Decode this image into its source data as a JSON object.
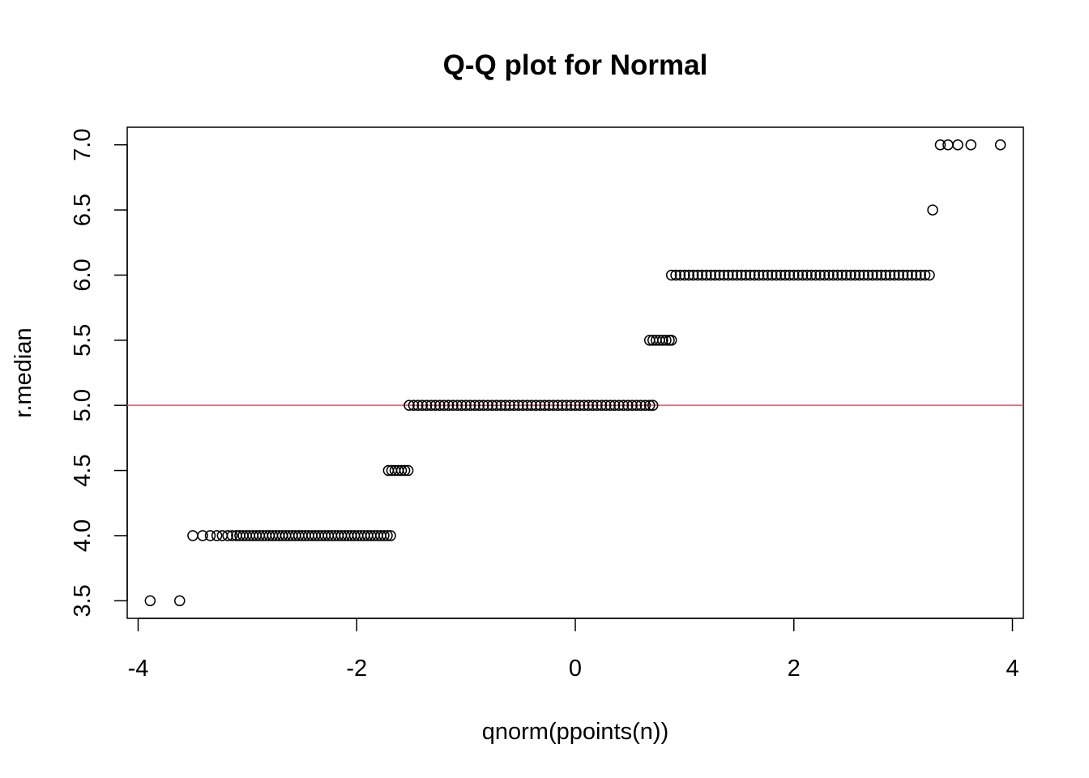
{
  "chart_data": {
    "type": "scatter",
    "title": "Q-Q plot for Normal",
    "xlabel": "qnorm(ppoints(n))",
    "ylabel": "r.median",
    "xlim": [
      -4.1,
      4.1
    ],
    "ylim": [
      3.365,
      7.135
    ],
    "x_ticks": [
      -4,
      -2,
      0,
      2,
      4
    ],
    "y_ticks": [
      3.5,
      4.0,
      4.5,
      5.0,
      5.5,
      6.0,
      6.5,
      7.0
    ],
    "reference_line": {
      "y": 5.0,
      "color": "#df536b"
    },
    "point_color": "#000000",
    "point_style": "open-circle",
    "points": [
      {
        "x": -3.89,
        "y": 3.5
      },
      {
        "x": -3.62,
        "y": 3.5
      },
      {
        "x": -3.5,
        "y": 4.0
      },
      {
        "x": -3.41,
        "y": 4.0
      },
      {
        "x": -3.34,
        "y": 4.0
      },
      {
        "x": -3.28,
        "y": 4.0
      },
      {
        "x": -3.23,
        "y": 4.0
      },
      {
        "x": -3.18,
        "y": 4.0
      },
      {
        "x": -3.14,
        "y": 4.0
      },
      {
        "x": -3.1,
        "y": 4.0
      },
      {
        "x": -3.07,
        "y": 4.0
      },
      {
        "x": -3.04,
        "y": 4.0
      },
      {
        "x": -3.01,
        "y": 4.0
      },
      {
        "x": -2.98,
        "y": 4.0
      },
      {
        "x": -2.95,
        "y": 4.0
      },
      {
        "x": -2.92,
        "y": 4.0
      },
      {
        "x": -2.89,
        "y": 4.0
      },
      {
        "x": -2.86,
        "y": 4.0
      },
      {
        "x": -2.83,
        "y": 4.0
      },
      {
        "x": -2.8,
        "y": 4.0
      },
      {
        "x": -2.77,
        "y": 4.0
      },
      {
        "x": -2.74,
        "y": 4.0
      },
      {
        "x": -2.71,
        "y": 4.0
      },
      {
        "x": -2.68,
        "y": 4.0
      },
      {
        "x": -2.65,
        "y": 4.0
      },
      {
        "x": -2.62,
        "y": 4.0
      },
      {
        "x": -2.59,
        "y": 4.0
      },
      {
        "x": -2.56,
        "y": 4.0
      },
      {
        "x": -2.53,
        "y": 4.0
      },
      {
        "x": -2.5,
        "y": 4.0
      },
      {
        "x": -2.47,
        "y": 4.0
      },
      {
        "x": -2.44,
        "y": 4.0
      },
      {
        "x": -2.41,
        "y": 4.0
      },
      {
        "x": -2.38,
        "y": 4.0
      },
      {
        "x": -2.35,
        "y": 4.0
      },
      {
        "x": -2.32,
        "y": 4.0
      },
      {
        "x": -2.29,
        "y": 4.0
      },
      {
        "x": -2.26,
        "y": 4.0
      },
      {
        "x": -2.23,
        "y": 4.0
      },
      {
        "x": -2.2,
        "y": 4.0
      },
      {
        "x": -2.17,
        "y": 4.0
      },
      {
        "x": -2.14,
        "y": 4.0
      },
      {
        "x": -2.11,
        "y": 4.0
      },
      {
        "x": -2.08,
        "y": 4.0
      },
      {
        "x": -2.05,
        "y": 4.0
      },
      {
        "x": -2.02,
        "y": 4.0
      },
      {
        "x": -1.99,
        "y": 4.0
      },
      {
        "x": -1.96,
        "y": 4.0
      },
      {
        "x": -1.93,
        "y": 4.0
      },
      {
        "x": -1.9,
        "y": 4.0
      },
      {
        "x": -1.87,
        "y": 4.0
      },
      {
        "x": -1.84,
        "y": 4.0
      },
      {
        "x": -1.81,
        "y": 4.0
      },
      {
        "x": -1.78,
        "y": 4.0
      },
      {
        "x": -1.75,
        "y": 4.0
      },
      {
        "x": -1.72,
        "y": 4.0
      },
      {
        "x": -1.69,
        "y": 4.0
      },
      {
        "x": -1.71,
        "y": 4.5
      },
      {
        "x": -1.68,
        "y": 4.5
      },
      {
        "x": -1.65,
        "y": 4.5
      },
      {
        "x": -1.62,
        "y": 4.5
      },
      {
        "x": -1.59,
        "y": 4.5
      },
      {
        "x": -1.56,
        "y": 4.5
      },
      {
        "x": -1.53,
        "y": 4.5
      },
      {
        "x": -1.52,
        "y": 5.0
      },
      {
        "x": -1.48,
        "y": 5.0
      },
      {
        "x": -1.44,
        "y": 5.0
      },
      {
        "x": -1.4,
        "y": 5.0
      },
      {
        "x": -1.36,
        "y": 5.0
      },
      {
        "x": -1.32,
        "y": 5.0
      },
      {
        "x": -1.28,
        "y": 5.0
      },
      {
        "x": -1.24,
        "y": 5.0
      },
      {
        "x": -1.2,
        "y": 5.0
      },
      {
        "x": -1.16,
        "y": 5.0
      },
      {
        "x": -1.12,
        "y": 5.0
      },
      {
        "x": -1.08,
        "y": 5.0
      },
      {
        "x": -1.04,
        "y": 5.0
      },
      {
        "x": -1.0,
        "y": 5.0
      },
      {
        "x": -0.96,
        "y": 5.0
      },
      {
        "x": -0.92,
        "y": 5.0
      },
      {
        "x": -0.88,
        "y": 5.0
      },
      {
        "x": -0.84,
        "y": 5.0
      },
      {
        "x": -0.8,
        "y": 5.0
      },
      {
        "x": -0.76,
        "y": 5.0
      },
      {
        "x": -0.72,
        "y": 5.0
      },
      {
        "x": -0.68,
        "y": 5.0
      },
      {
        "x": -0.64,
        "y": 5.0
      },
      {
        "x": -0.6,
        "y": 5.0
      },
      {
        "x": -0.56,
        "y": 5.0
      },
      {
        "x": -0.52,
        "y": 5.0
      },
      {
        "x": -0.48,
        "y": 5.0
      },
      {
        "x": -0.44,
        "y": 5.0
      },
      {
        "x": -0.4,
        "y": 5.0
      },
      {
        "x": -0.36,
        "y": 5.0
      },
      {
        "x": -0.32,
        "y": 5.0
      },
      {
        "x": -0.28,
        "y": 5.0
      },
      {
        "x": -0.24,
        "y": 5.0
      },
      {
        "x": -0.2,
        "y": 5.0
      },
      {
        "x": -0.16,
        "y": 5.0
      },
      {
        "x": -0.12,
        "y": 5.0
      },
      {
        "x": -0.08,
        "y": 5.0
      },
      {
        "x": -0.04,
        "y": 5.0
      },
      {
        "x": 0.0,
        "y": 5.0
      },
      {
        "x": 0.04,
        "y": 5.0
      },
      {
        "x": 0.08,
        "y": 5.0
      },
      {
        "x": 0.12,
        "y": 5.0
      },
      {
        "x": 0.16,
        "y": 5.0
      },
      {
        "x": 0.2,
        "y": 5.0
      },
      {
        "x": 0.24,
        "y": 5.0
      },
      {
        "x": 0.28,
        "y": 5.0
      },
      {
        "x": 0.32,
        "y": 5.0
      },
      {
        "x": 0.36,
        "y": 5.0
      },
      {
        "x": 0.4,
        "y": 5.0
      },
      {
        "x": 0.44,
        "y": 5.0
      },
      {
        "x": 0.48,
        "y": 5.0
      },
      {
        "x": 0.52,
        "y": 5.0
      },
      {
        "x": 0.56,
        "y": 5.0
      },
      {
        "x": 0.6,
        "y": 5.0
      },
      {
        "x": 0.64,
        "y": 5.0
      },
      {
        "x": 0.68,
        "y": 5.0
      },
      {
        "x": 0.71,
        "y": 5.0
      },
      {
        "x": 0.68,
        "y": 5.5
      },
      {
        "x": 0.71,
        "y": 5.5
      },
      {
        "x": 0.74,
        "y": 5.5
      },
      {
        "x": 0.77,
        "y": 5.5
      },
      {
        "x": 0.8,
        "y": 5.5
      },
      {
        "x": 0.83,
        "y": 5.5
      },
      {
        "x": 0.86,
        "y": 5.5
      },
      {
        "x": 0.88,
        "y": 5.5
      },
      {
        "x": 0.88,
        "y": 6.0
      },
      {
        "x": 0.92,
        "y": 6.0
      },
      {
        "x": 0.96,
        "y": 6.0
      },
      {
        "x": 1.0,
        "y": 6.0
      },
      {
        "x": 1.04,
        "y": 6.0
      },
      {
        "x": 1.08,
        "y": 6.0
      },
      {
        "x": 1.12,
        "y": 6.0
      },
      {
        "x": 1.16,
        "y": 6.0
      },
      {
        "x": 1.2,
        "y": 6.0
      },
      {
        "x": 1.24,
        "y": 6.0
      },
      {
        "x": 1.28,
        "y": 6.0
      },
      {
        "x": 1.32,
        "y": 6.0
      },
      {
        "x": 1.36,
        "y": 6.0
      },
      {
        "x": 1.4,
        "y": 6.0
      },
      {
        "x": 1.44,
        "y": 6.0
      },
      {
        "x": 1.48,
        "y": 6.0
      },
      {
        "x": 1.52,
        "y": 6.0
      },
      {
        "x": 1.56,
        "y": 6.0
      },
      {
        "x": 1.6,
        "y": 6.0
      },
      {
        "x": 1.64,
        "y": 6.0
      },
      {
        "x": 1.68,
        "y": 6.0
      },
      {
        "x": 1.72,
        "y": 6.0
      },
      {
        "x": 1.76,
        "y": 6.0
      },
      {
        "x": 1.8,
        "y": 6.0
      },
      {
        "x": 1.84,
        "y": 6.0
      },
      {
        "x": 1.88,
        "y": 6.0
      },
      {
        "x": 1.92,
        "y": 6.0
      },
      {
        "x": 1.96,
        "y": 6.0
      },
      {
        "x": 2.0,
        "y": 6.0
      },
      {
        "x": 2.04,
        "y": 6.0
      },
      {
        "x": 2.08,
        "y": 6.0
      },
      {
        "x": 2.12,
        "y": 6.0
      },
      {
        "x": 2.16,
        "y": 6.0
      },
      {
        "x": 2.2,
        "y": 6.0
      },
      {
        "x": 2.24,
        "y": 6.0
      },
      {
        "x": 2.28,
        "y": 6.0
      },
      {
        "x": 2.32,
        "y": 6.0
      },
      {
        "x": 2.36,
        "y": 6.0
      },
      {
        "x": 2.4,
        "y": 6.0
      },
      {
        "x": 2.44,
        "y": 6.0
      },
      {
        "x": 2.48,
        "y": 6.0
      },
      {
        "x": 2.52,
        "y": 6.0
      },
      {
        "x": 2.56,
        "y": 6.0
      },
      {
        "x": 2.6,
        "y": 6.0
      },
      {
        "x": 2.64,
        "y": 6.0
      },
      {
        "x": 2.68,
        "y": 6.0
      },
      {
        "x": 2.72,
        "y": 6.0
      },
      {
        "x": 2.76,
        "y": 6.0
      },
      {
        "x": 2.8,
        "y": 6.0
      },
      {
        "x": 2.84,
        "y": 6.0
      },
      {
        "x": 2.88,
        "y": 6.0
      },
      {
        "x": 2.92,
        "y": 6.0
      },
      {
        "x": 2.96,
        "y": 6.0
      },
      {
        "x": 3.0,
        "y": 6.0
      },
      {
        "x": 3.04,
        "y": 6.0
      },
      {
        "x": 3.08,
        "y": 6.0
      },
      {
        "x": 3.12,
        "y": 6.0
      },
      {
        "x": 3.16,
        "y": 6.0
      },
      {
        "x": 3.2,
        "y": 6.0
      },
      {
        "x": 3.24,
        "y": 6.0
      },
      {
        "x": 3.27,
        "y": 6.5
      },
      {
        "x": 3.34,
        "y": 7.0
      },
      {
        "x": 3.41,
        "y": 7.0
      },
      {
        "x": 3.5,
        "y": 7.0
      },
      {
        "x": 3.62,
        "y": 7.0
      },
      {
        "x": 3.89,
        "y": 7.0
      }
    ]
  }
}
